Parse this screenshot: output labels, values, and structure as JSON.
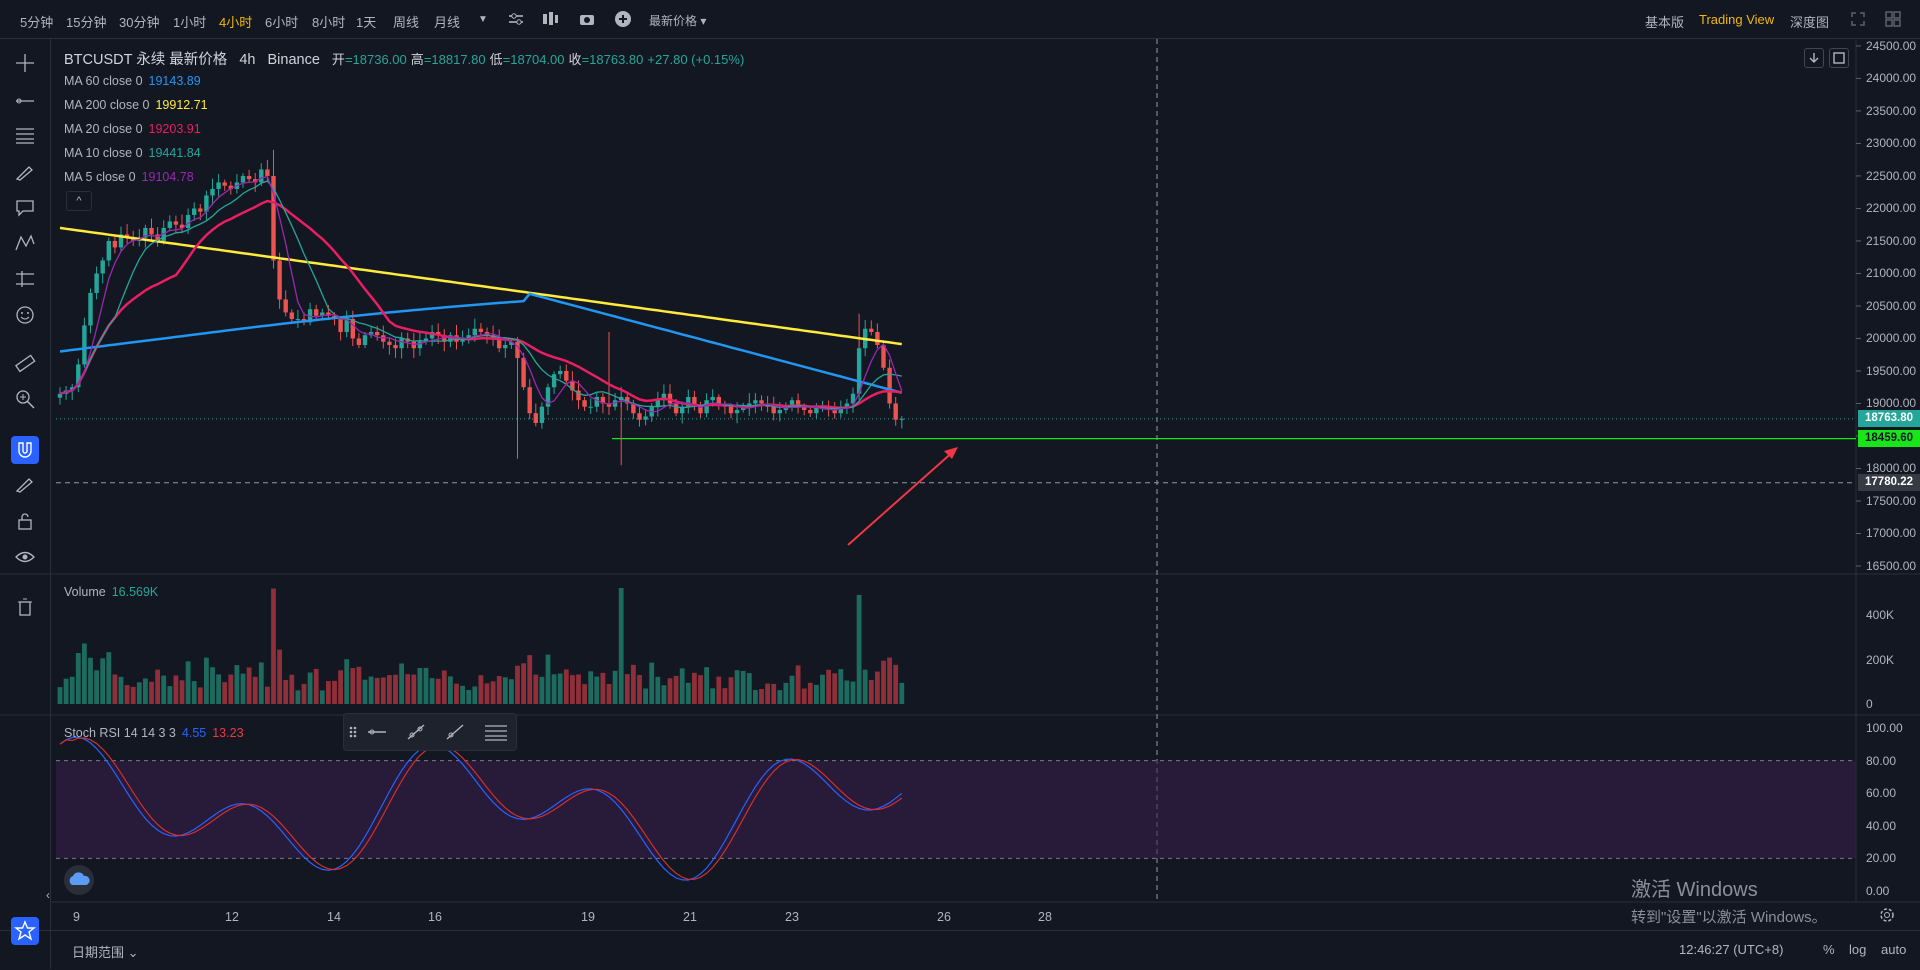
{
  "toolbar_top": {
    "timeframes": [
      "5分钟",
      "15分钟",
      "30分钟",
      "1小时",
      "4小时",
      "6小时",
      "8小时",
      "1天",
      "周线",
      "月线"
    ],
    "active_timeframe": "4小时",
    "price_type": "最新价格",
    "views": [
      "基本版",
      "Trading View",
      "深度图"
    ],
    "active_view": "Trading View"
  },
  "header": {
    "symbol": "BTCUSDT 永续 最新价格",
    "interval": "4h",
    "exchange": "Binance",
    "open_label": "开",
    "open": "=18736.00",
    "high_label": "高",
    "high": "=18817.80",
    "low_label": "低",
    "low": "=18704.00",
    "close_label": "收",
    "close": "=18763.80",
    "change": "+27.80 (+0.15%)"
  },
  "indicators": [
    {
      "label": "MA 60 close 0",
      "value": "19143.89",
      "color": "#2196f3"
    },
    {
      "label": "MA 200 close 0",
      "value": "19912.71",
      "color": "#ffeb3b"
    },
    {
      "label": "MA 20 close 0",
      "value": "19203.91",
      "color": "#e91e63"
    },
    {
      "label": "MA 10 close 0",
      "value": "19441.84",
      "color": "#26a69a"
    },
    {
      "label": "MA 5 close 0",
      "value": "19104.78",
      "color": "#9c27b0"
    }
  ],
  "price_axis": {
    "ticks": [
      "24500.00",
      "24000.00",
      "23500.00",
      "23000.00",
      "22500.00",
      "22000.00",
      "21500.00",
      "21000.00",
      "20500.00",
      "20000.00",
      "19500.00",
      "19000.00",
      "18500.00",
      "18000.00",
      "17500.00",
      "17000.00",
      "16500.00"
    ],
    "current_price": "18763.80",
    "support_price": "18459.60",
    "crosshair_price": "17780.22"
  },
  "volume_pane": {
    "label": "Volume",
    "value": "16.569K",
    "ticks": [
      "400K",
      "200K",
      "0"
    ]
  },
  "rsi_pane": {
    "label": "Stoch RSI 14 14 3 3",
    "k_value": "4.55",
    "d_value": "13.23",
    "ticks": [
      "100.00",
      "80.00",
      "60.00",
      "40.00",
      "20.00",
      "0.00"
    ]
  },
  "x_axis": {
    "labels": [
      "9",
      "12",
      "14",
      "16",
      "19",
      "21",
      "23",
      "26",
      "28"
    ]
  },
  "bottom_bar": {
    "date_range": "日期范围",
    "time": "12:46:27 (UTC+8)",
    "percent": "%",
    "log": "log",
    "auto": "auto"
  },
  "watermark": {
    "line1": "激活 Windows",
    "line2": "转到\"设置\"以激活 Windows。"
  },
  "chart_data": {
    "type": "candlestick",
    "closes": [
      19150,
      19200,
      19250,
      19600,
      20200,
      20700,
      21000,
      21200,
      21500,
      21400,
      21600,
      21550,
      21500,
      21550,
      21700,
      21600,
      21500,
      21700,
      21800,
      21750,
      21700,
      21900,
      22000,
      21950,
      22200,
      22300,
      22400,
      22350,
      22300,
      22400,
      22500,
      22450,
      22400,
      22600,
      22500,
      21200,
      20600,
      20400,
      20300,
      20300,
      20250,
      20450,
      20350,
      20400,
      20350,
      20300,
      20100,
      20300,
      20000,
      19900,
      20050,
      20100,
      20050,
      19950,
      19900,
      19850,
      20000,
      19950,
      19850,
      19950,
      20000,
      20100,
      20050,
      19950,
      20050,
      19950,
      20000,
      20050,
      20150,
      20100,
      20050,
      20000,
      19850,
      19900,
      19950,
      19700,
      19250,
      18850,
      18700,
      18950,
      19250,
      19450,
      19500,
      19350,
      19200,
      19050,
      18950,
      18950,
      19100,
      19000,
      18950,
      19050,
      19100,
      19000,
      18850,
      18750,
      18800,
      18950,
      19050,
      19150,
      19000,
      18850,
      18950,
      19100,
      18950,
      18850,
      19050,
      19100,
      19000,
      18950,
      18850,
      18900,
      18950,
      19000,
      19050,
      19000,
      18950,
      18850,
      18900,
      18950,
      19050,
      18950,
      18900,
      18850,
      18950,
      18950,
      18900,
      18850,
      18950,
      19000,
      19150,
      19850,
      20150,
      20100,
      19900,
      19550,
      19000,
      18750,
      18764
    ],
    "ma_200": "declining from ~21700 to ~19913",
    "ma_60": "rising from ~19800 to ~20700 then declining to ~19144",
    "support_level": 18459.6,
    "price_range": [
      16500,
      24500
    ],
    "volume_ylim": [
      0,
      450000
    ],
    "stoch_rsi_bands": [
      20,
      80
    ]
  }
}
